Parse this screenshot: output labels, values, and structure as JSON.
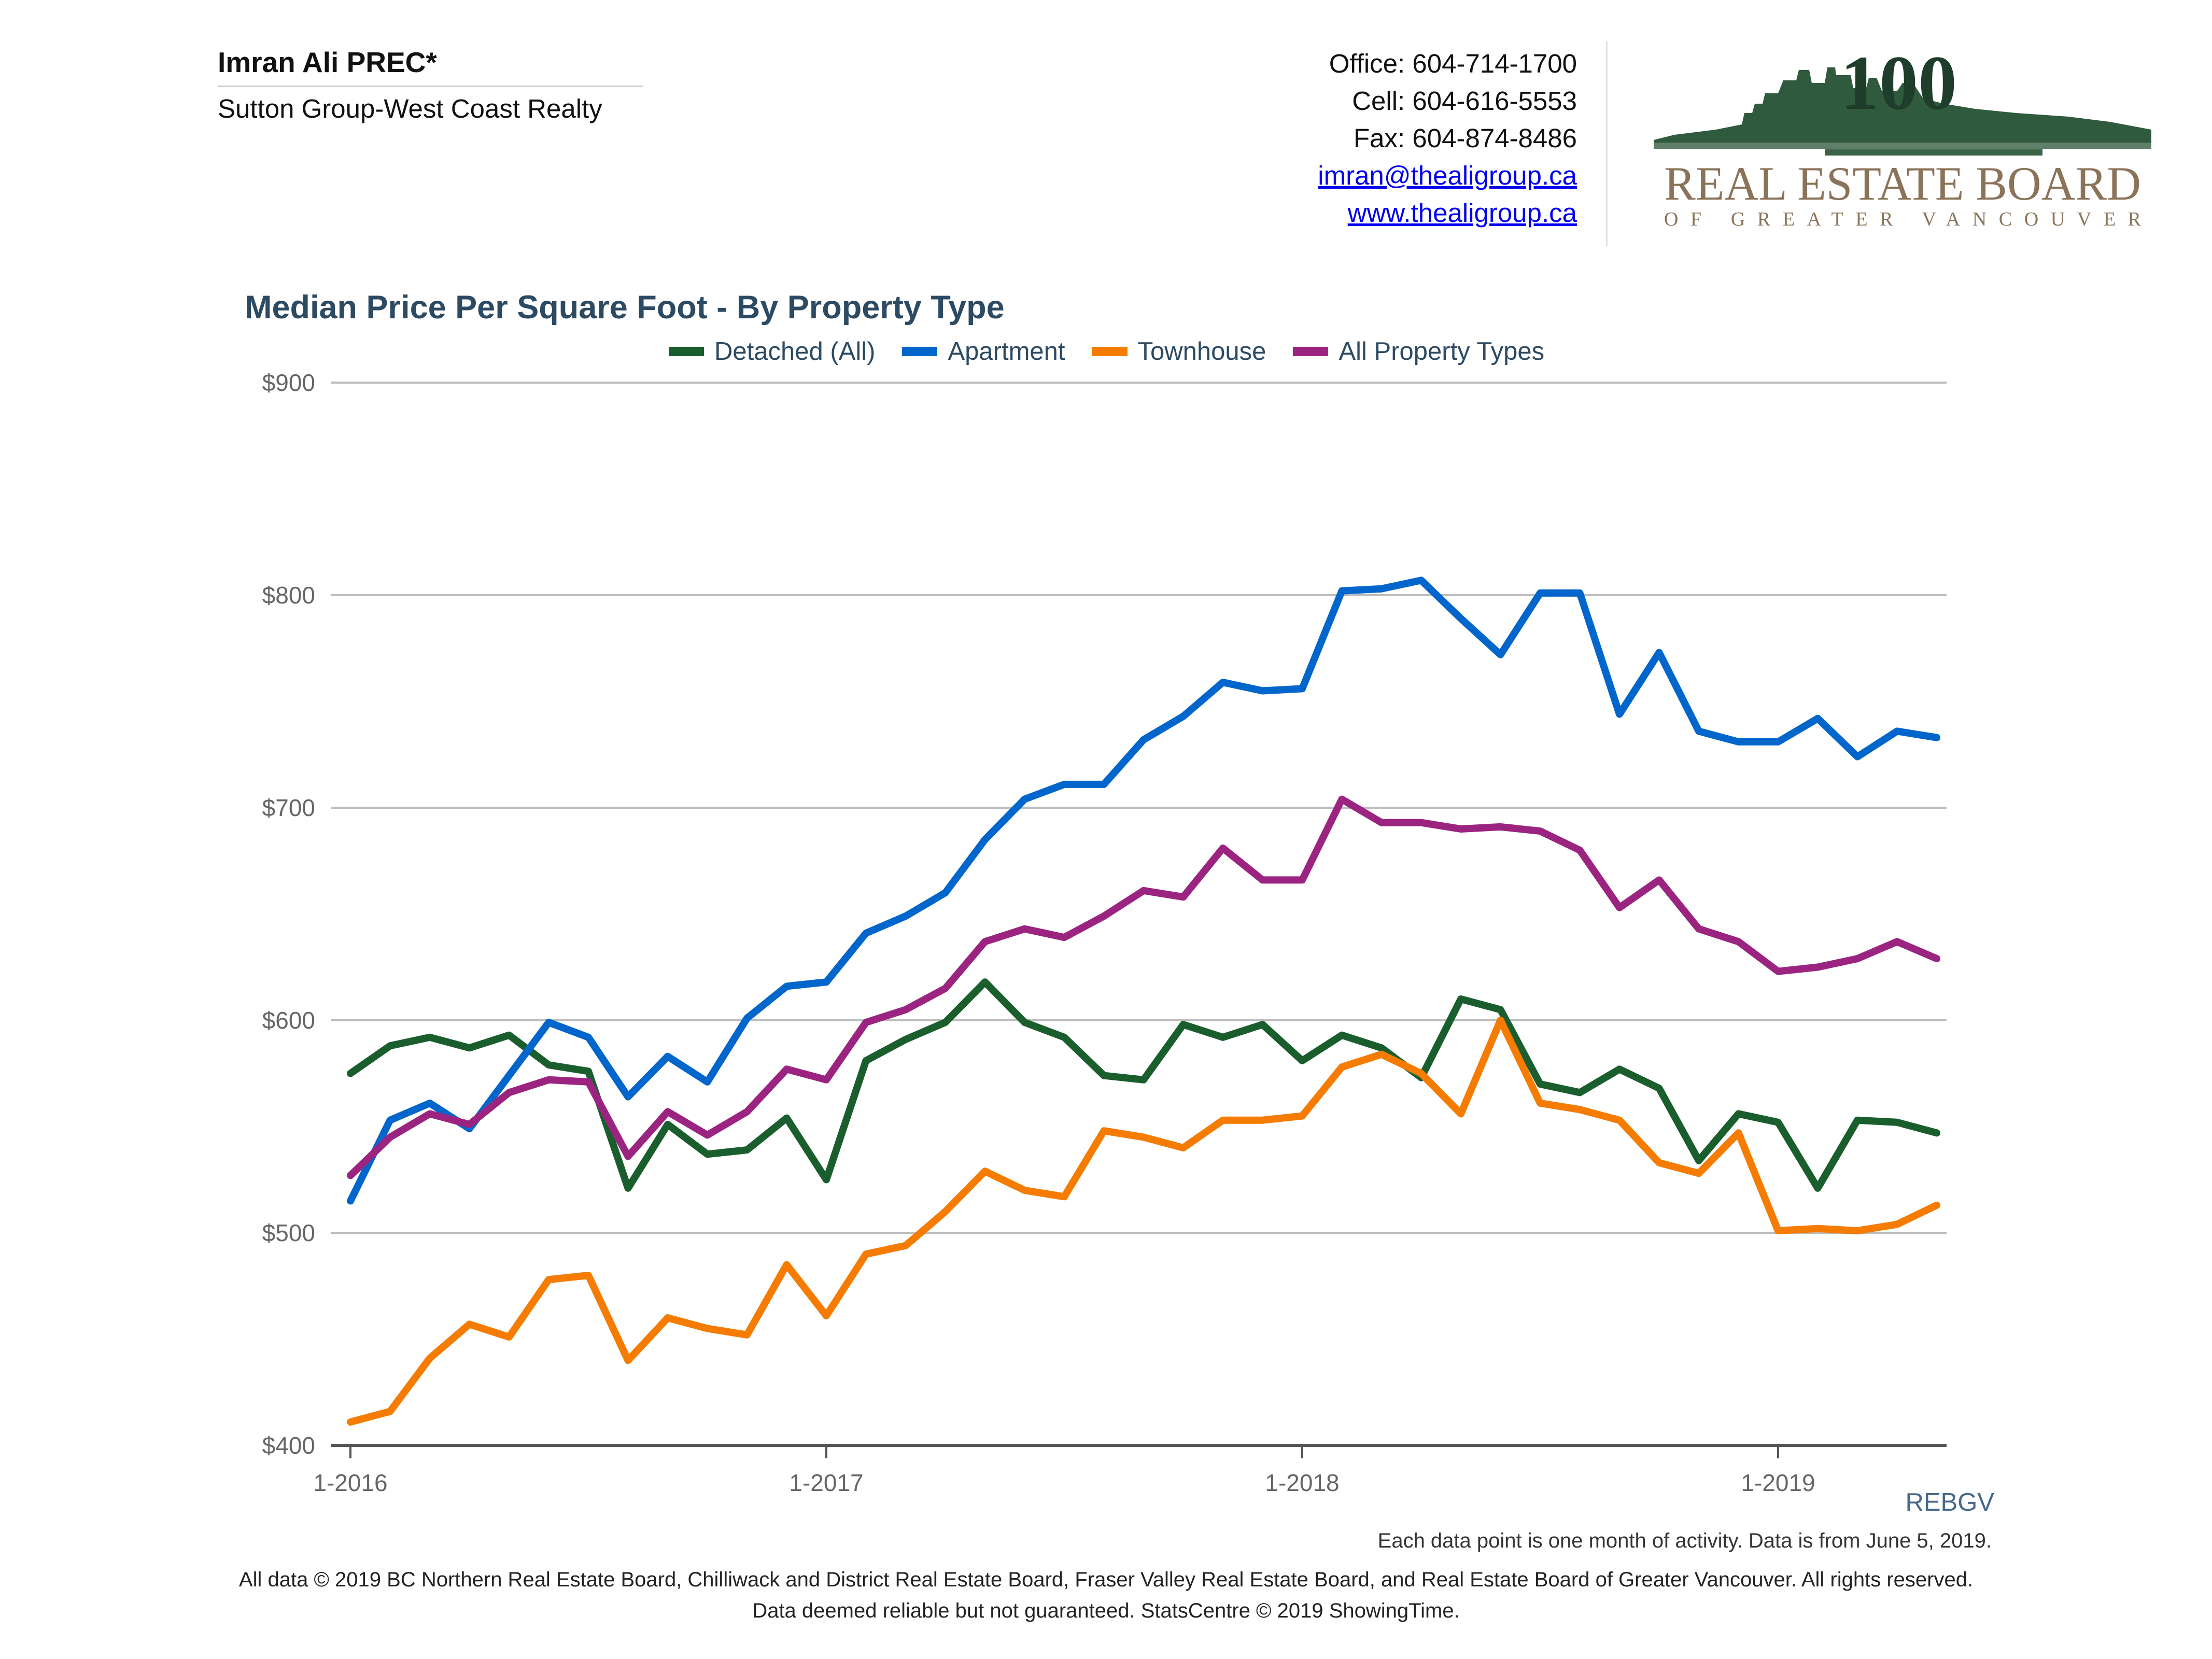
{
  "agent": {
    "name": "Imran Ali PREC*",
    "company": "Sutton Group-West Coast Realty"
  },
  "contact": {
    "office": "Office: 604-714-1700",
    "cell": "Cell: 604-616-5553",
    "fax": "Fax: 604-874-8486",
    "email": "imran@thealigroup.ca",
    "website": "www.thealigroup.ca"
  },
  "logo": {
    "number": "100",
    "name": "REAL ESTATE BOARD",
    "subname": "OF GREATER VANCOUVER",
    "icon": "city-skyline-logo-icon",
    "color": "#1f3d2b"
  },
  "chart_data": {
    "type": "line",
    "title": "Median Price Per Square Foot - By Property Type",
    "xlabel": "",
    "ylabel": "",
    "x": [
      "1-2016",
      "2-2016",
      "3-2016",
      "4-2016",
      "5-2016",
      "6-2016",
      "7-2016",
      "8-2016",
      "9-2016",
      "10-2016",
      "11-2016",
      "12-2016",
      "1-2017",
      "2-2017",
      "3-2017",
      "4-2017",
      "5-2017",
      "6-2017",
      "7-2017",
      "8-2017",
      "9-2017",
      "10-2017",
      "11-2017",
      "12-2017",
      "1-2018",
      "2-2018",
      "3-2018",
      "4-2018",
      "5-2018",
      "6-2018",
      "7-2018",
      "8-2018",
      "9-2018",
      "10-2018",
      "11-2018",
      "12-2018",
      "1-2019",
      "2-2019",
      "3-2019",
      "4-2019",
      "5-2019"
    ],
    "x_tick_labels": [
      "1-2016",
      "1-2017",
      "1-2018",
      "1-2019"
    ],
    "y_ticks": [
      "$400",
      "$500",
      "$600",
      "$700",
      "$800",
      "$900"
    ],
    "ylim": [
      400,
      900
    ],
    "grid": true,
    "legend_position": "top",
    "series": [
      {
        "name": "Detached (All)",
        "color": "#1a5e2e",
        "values": [
          575,
          588,
          592,
          587,
          593,
          579,
          576,
          521,
          551,
          537,
          539,
          554,
          525,
          581,
          591,
          599,
          618,
          599,
          592,
          574,
          572,
          598,
          592,
          598,
          581,
          593,
          587,
          573,
          610,
          605,
          570,
          566,
          577,
          568,
          534,
          556,
          552,
          521,
          553,
          552,
          547
        ]
      },
      {
        "name": "Apartment",
        "color": "#0066cc",
        "values": [
          515,
          553,
          561,
          549,
          574,
          599,
          592,
          564,
          583,
          571,
          601,
          616,
          618,
          641,
          649,
          660,
          685,
          704,
          711,
          711,
          732,
          743,
          759,
          755,
          756,
          802,
          803,
          807,
          789,
          772,
          801,
          801,
          744,
          773,
          736,
          731,
          731,
          742,
          724,
          736,
          733
        ]
      },
      {
        "name": "Townhouse",
        "color": "#f57c00",
        "values": [
          411,
          416,
          441,
          457,
          451,
          478,
          480,
          440,
          460,
          455,
          452,
          485,
          461,
          490,
          494,
          510,
          529,
          520,
          517,
          548,
          545,
          540,
          553,
          553,
          555,
          578,
          584,
          575,
          556,
          600,
          561,
          558,
          553,
          533,
          528,
          547,
          501,
          502,
          501,
          504,
          513
        ]
      },
      {
        "name": "All Property Types",
        "color": "#9b2481",
        "values": [
          527,
          545,
          556,
          551,
          566,
          572,
          571,
          536,
          557,
          546,
          557,
          577,
          572,
          599,
          605,
          615,
          637,
          643,
          639,
          649,
          661,
          658,
          681,
          666,
          666,
          704,
          693,
          693,
          690,
          691,
          689,
          680,
          653,
          666,
          643,
          637,
          623,
          625,
          629,
          637,
          629
        ]
      }
    ],
    "source_label": "REBGV",
    "note": "Each data point is one month of activity. Data is from June 5, 2019."
  },
  "footer": {
    "line1": "All data © 2019 BC Northern Real Estate Board, Chilliwack and District Real Estate Board, Fraser Valley Real Estate Board, and Real Estate Board of Greater Vancouver. All rights reserved.",
    "line2": "Data deemed reliable but not guaranteed. StatsCentre © 2019 ShowingTime."
  }
}
